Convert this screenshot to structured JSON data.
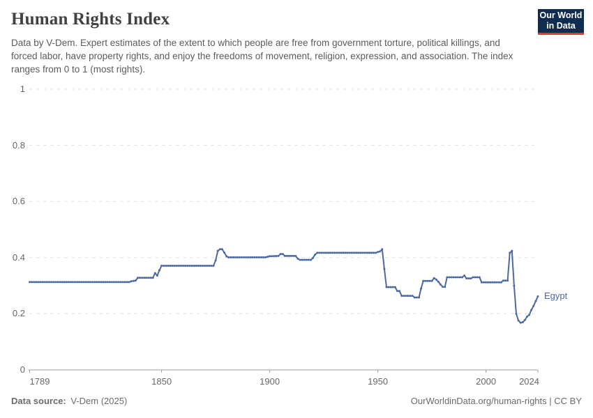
{
  "header": {
    "title": "Human Rights Index",
    "subtitle": "Data by V-Dem. Expert estimates of the extent to which people are free from government torture, political killings, and forced labor, have property rights, and enjoy the freedoms of movement, religion, expression, and association. The index ranges from 0 to 1 (most rights).",
    "logo": {
      "line1": "Our World",
      "line2": "in Data"
    }
  },
  "chart_data": {
    "type": "line",
    "title": "Human Rights Index",
    "xlim": [
      1789,
      2024
    ],
    "ylim": [
      0,
      1
    ],
    "grid": "horizontal-dashed",
    "legend_position": "end-of-line-label",
    "x_ticks": [
      {
        "year": 1789,
        "label": "1789",
        "align": "left"
      },
      {
        "year": 1850,
        "label": "1850",
        "align": "center"
      },
      {
        "year": 1900,
        "label": "1900",
        "align": "center"
      },
      {
        "year": 1950,
        "label": "1950",
        "align": "center"
      },
      {
        "year": 2000,
        "label": "2000",
        "align": "center"
      },
      {
        "year": 2024,
        "label": "2024",
        "align": "right"
      }
    ],
    "y_ticks": [
      {
        "value": 0,
        "label": "0"
      },
      {
        "value": 0.2,
        "label": "0.2"
      },
      {
        "value": 0.4,
        "label": "0.4"
      },
      {
        "value": 0.6,
        "label": "0.6"
      },
      {
        "value": 0.8,
        "label": "0.8"
      },
      {
        "value": 1,
        "label": "1"
      }
    ],
    "series": [
      {
        "name": "Egypt",
        "color": "#4c69a2",
        "points": [
          [
            1789,
            0.313
          ],
          [
            1835,
            0.313
          ],
          [
            1836,
            0.316
          ],
          [
            1838,
            0.318
          ],
          [
            1839,
            0.328
          ],
          [
            1846,
            0.328
          ],
          [
            1847,
            0.345
          ],
          [
            1848,
            0.336
          ],
          [
            1849,
            0.355
          ],
          [
            1850,
            0.371
          ],
          [
            1874,
            0.371
          ],
          [
            1875,
            0.39
          ],
          [
            1876,
            0.424
          ],
          [
            1877,
            0.43
          ],
          [
            1878,
            0.43
          ],
          [
            1879,
            0.418
          ],
          [
            1880,
            0.405
          ],
          [
            1881,
            0.401
          ],
          [
            1898,
            0.401
          ],
          [
            1900,
            0.405
          ],
          [
            1904,
            0.406
          ],
          [
            1905,
            0.413
          ],
          [
            1906,
            0.413
          ],
          [
            1907,
            0.406
          ],
          [
            1912,
            0.406
          ],
          [
            1913,
            0.396
          ],
          [
            1914,
            0.392
          ],
          [
            1919,
            0.392
          ],
          [
            1920,
            0.399
          ],
          [
            1921,
            0.411
          ],
          [
            1922,
            0.417
          ],
          [
            1949,
            0.417
          ],
          [
            1950,
            0.42
          ],
          [
            1951,
            0.422
          ],
          [
            1952,
            0.43
          ],
          [
            1953,
            0.36
          ],
          [
            1954,
            0.295
          ],
          [
            1958,
            0.295
          ],
          [
            1959,
            0.281
          ],
          [
            1960,
            0.281
          ],
          [
            1961,
            0.264
          ],
          [
            1966,
            0.264
          ],
          [
            1967,
            0.258
          ],
          [
            1969,
            0.258
          ],
          [
            1970,
            0.29
          ],
          [
            1971,
            0.317
          ],
          [
            1975,
            0.317
          ],
          [
            1976,
            0.327
          ],
          [
            1977,
            0.322
          ],
          [
            1978,
            0.314
          ],
          [
            1979,
            0.304
          ],
          [
            1980,
            0.296
          ],
          [
            1981,
            0.296
          ],
          [
            1982,
            0.33
          ],
          [
            1989,
            0.33
          ],
          [
            1990,
            0.336
          ],
          [
            1991,
            0.326
          ],
          [
            1993,
            0.326
          ],
          [
            1994,
            0.33
          ],
          [
            1997,
            0.33
          ],
          [
            1998,
            0.312
          ],
          [
            2007,
            0.312
          ],
          [
            2008,
            0.318
          ],
          [
            2010,
            0.318
          ],
          [
            2011,
            0.417
          ],
          [
            2012,
            0.424
          ],
          [
            2013,
            0.3
          ],
          [
            2014,
            0.2
          ],
          [
            2015,
            0.176
          ],
          [
            2016,
            0.168
          ],
          [
            2017,
            0.17
          ],
          [
            2018,
            0.178
          ],
          [
            2019,
            0.19
          ],
          [
            2020,
            0.196
          ],
          [
            2021,
            0.214
          ],
          [
            2022,
            0.228
          ],
          [
            2023,
            0.245
          ],
          [
            2024,
            0.262
          ]
        ]
      }
    ]
  },
  "footer": {
    "source_prefix": "Data source:",
    "source": "V-Dem (2025)",
    "link": "OurWorldinData.org/human-rights",
    "separator": "|",
    "license": "CC BY"
  },
  "colors": {
    "line": "#4c69a2",
    "grid": "#dddddd",
    "axis": "#9d9d9d",
    "muted_text": "#666666",
    "title_text": "#424242",
    "logo_bg": "#102d50",
    "logo_red": "#e23b31"
  }
}
